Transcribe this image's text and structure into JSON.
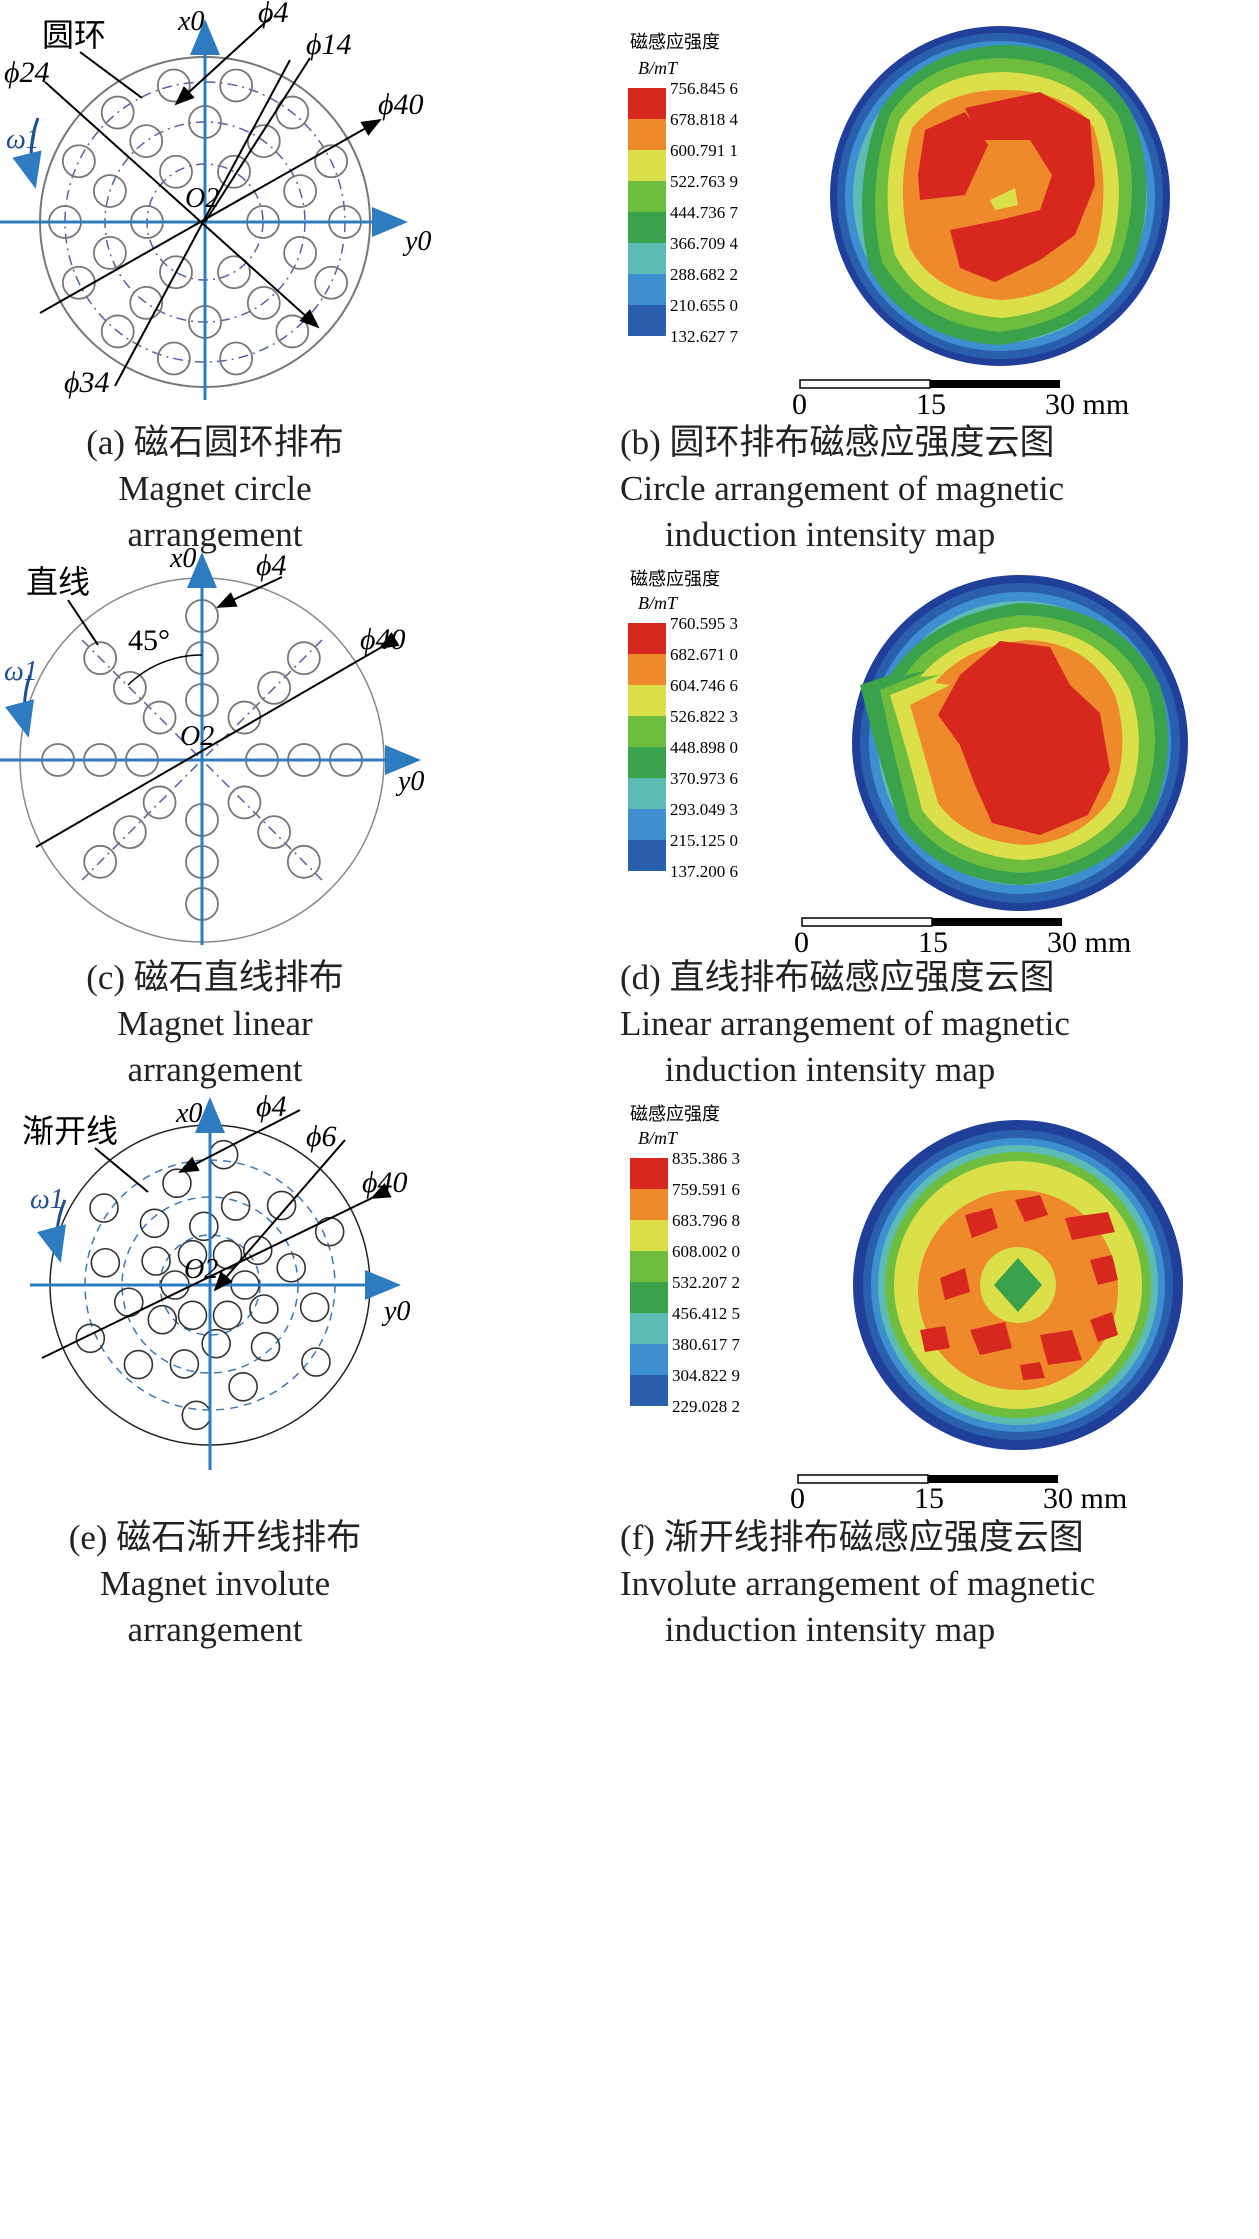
{
  "figure": {
    "panels": [
      {
        "id": "a",
        "caption_cn": "(a) 磁石圆环排布",
        "caption_en_1": "Magnet circle",
        "caption_en_2": "arrangement",
        "labels": {
          "curve": "圆环",
          "omega": "ω1",
          "x": "x0",
          "y": "y0",
          "origin": "O2",
          "d1": "ϕ4",
          "d2": "ϕ14",
          "d3": "ϕ24",
          "d4": "ϕ34",
          "d5": "ϕ40"
        }
      },
      {
        "id": "b",
        "caption_cn": "(b) 圆环排布磁感应强度云图",
        "caption_en_1": "Circle arrangement of magnetic",
        "caption_en_2": "induction intensity map",
        "colorbar": {
          "title": "磁感应强度",
          "unit": "B/mT",
          "values": [
            "756.845 6",
            "678.818 4",
            "600.791 1",
            "522.763 9",
            "444.736 7",
            "366.709 4",
            "288.682 2",
            "210.655 0",
            "132.627 7"
          ]
        },
        "scalebar": {
          "ticks": [
            "0",
            "15",
            "30 mm"
          ]
        }
      },
      {
        "id": "c",
        "caption_cn": "(c) 磁石直线排布",
        "caption_en_1": "Magnet linear",
        "caption_en_2": "arrangement",
        "labels": {
          "curve": "直线",
          "omega": "ω1",
          "x": "x0",
          "y": "y0",
          "origin": "O2",
          "d1": "ϕ4",
          "d5": "ϕ40",
          "angle": "45°"
        }
      },
      {
        "id": "d",
        "caption_cn": "(d) 直线排布磁感应强度云图",
        "caption_en_1": "Linear arrangement of magnetic",
        "caption_en_2": "induction intensity map",
        "colorbar": {
          "title": "磁感应强度",
          "unit": "B/mT",
          "values": [
            "760.595 3",
            "682.671 0",
            "604.746 6",
            "526.822 3",
            "448.898 0",
            "370.973 6",
            "293.049 3",
            "215.125 0",
            "137.200 6"
          ]
        },
        "scalebar": {
          "ticks": [
            "0",
            "15",
            "30 mm"
          ]
        }
      },
      {
        "id": "e",
        "caption_cn": "(e) 磁石渐开线排布",
        "caption_en_1": "Magnet involute",
        "caption_en_2": "arrangement",
        "labels": {
          "curve": "渐开线",
          "omega": "ω1",
          "x": "x0",
          "y": "y0",
          "origin": "O2",
          "d1": "ϕ4",
          "d2": "ϕ6",
          "d5": "ϕ40"
        }
      },
      {
        "id": "f",
        "caption_cn": "(f) 渐开线排布磁感应强度云图",
        "caption_en_1": "Involute arrangement of magnetic",
        "caption_en_2": "induction intensity map",
        "colorbar": {
          "title": "磁感应强度",
          "unit": "B/mT",
          "values": [
            "835.386 3",
            "759.591 6",
            "683.796 8",
            "608.002 0",
            "532.207 2",
            "456.412 5",
            "380.617 7",
            "304.822 9",
            "229.028 2"
          ]
        },
        "scalebar": {
          "ticks": [
            "0",
            "15",
            "30 mm"
          ]
        }
      }
    ],
    "colors": {
      "levels": [
        "#d7281f",
        "#ee8a2b",
        "#dbe04a",
        "#6fbd3f",
        "#39a24b",
        "#5cbcb5",
        "#3d8fcf",
        "#2a5fad",
        "#1f3f99"
      ],
      "axis": "#2e7bbf",
      "dash_circle": "#5560a8"
    }
  }
}
